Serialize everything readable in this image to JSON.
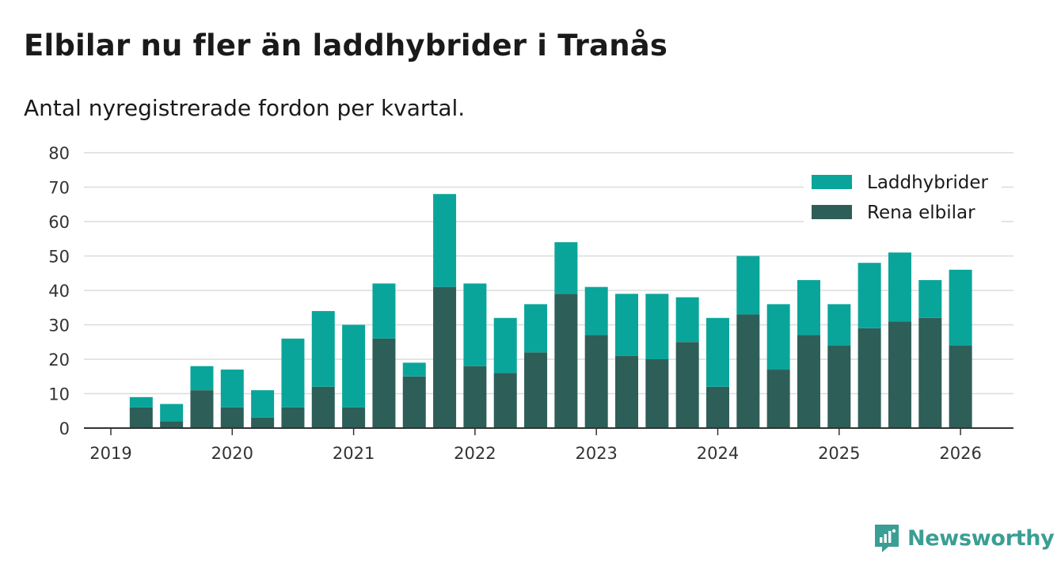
{
  "header": {
    "title": "Elbilar nu fler än laddhybrider i Tranås",
    "subtitle": "Antal nyregistrerade fordon per kvartal."
  },
  "brand": {
    "name": "Newsworthy",
    "icon": "newsworthy-logo-icon",
    "color": "#3a9e94"
  },
  "chart_data": {
    "type": "bar",
    "stacked": true,
    "title": "Elbilar nu fler än laddhybrider i Tranås",
    "subtitle": "Antal nyregistrerade fordon per kvartal.",
    "xlabel": "",
    "ylabel": "",
    "ylim": [
      0,
      80
    ],
    "yticks": [
      0,
      10,
      20,
      30,
      40,
      50,
      60,
      70,
      80
    ],
    "xticks": [
      "2019",
      "2020",
      "2021",
      "2022",
      "2023",
      "2024",
      "2025",
      "2026"
    ],
    "grid": true,
    "legend_position": "top-right",
    "categories": [
      "2019 Q1",
      "2019 Q2",
      "2019 Q3",
      "2019 Q4",
      "2020 Q1",
      "2020 Q2",
      "2020 Q3",
      "2020 Q4",
      "2021 Q1",
      "2021 Q2",
      "2021 Q3",
      "2021 Q4",
      "2022 Q1",
      "2022 Q2",
      "2022 Q3",
      "2022 Q4",
      "2023 Q1",
      "2023 Q2",
      "2023 Q3",
      "2023 Q4",
      "2024 Q1",
      "2024 Q2",
      "2024 Q3",
      "2024 Q4",
      "2025 Q1",
      "2025 Q2",
      "2025 Q3",
      "2025 Q4"
    ],
    "series": [
      {
        "name": "Rena elbilar",
        "color": "#2e5e58",
        "values": [
          6,
          2,
          11,
          6,
          3,
          6,
          12,
          6,
          26,
          15,
          41,
          18,
          16,
          22,
          39,
          27,
          21,
          20,
          25,
          12,
          33,
          17,
          27,
          24,
          29,
          31,
          32,
          24
        ]
      },
      {
        "name": "Laddhybrider",
        "color": "#0aa59a",
        "values": [
          3,
          5,
          7,
          11,
          8,
          20,
          22,
          24,
          16,
          4,
          27,
          24,
          16,
          14,
          15,
          14,
          18,
          19,
          13,
          20,
          17,
          19,
          16,
          12,
          19,
          20,
          11,
          22
        ]
      }
    ],
    "legend": [
      "Laddhybrider",
      "Rena elbilar"
    ]
  }
}
